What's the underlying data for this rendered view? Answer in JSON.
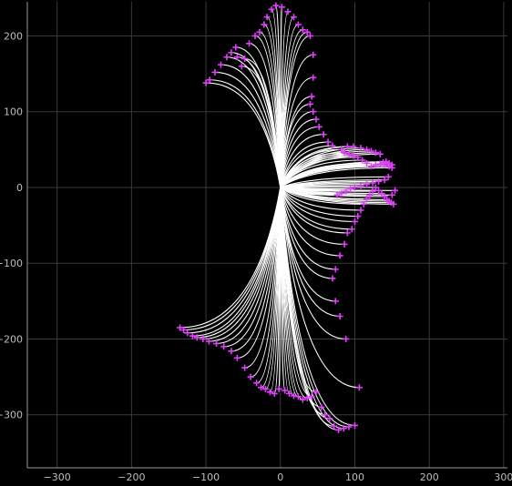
{
  "chart_data": {
    "type": "scatter",
    "title": "",
    "xlabel": "",
    "ylabel": "",
    "xlim": [
      -340,
      305
    ],
    "ylim": [
      -370,
      245
    ],
    "xticks": [
      -300,
      -200,
      -100,
      0,
      100,
      200,
      300
    ],
    "yticks": [
      -300,
      -200,
      -100,
      0,
      100,
      200
    ],
    "xtick_labels": [
      "−300",
      "−200",
      "−100",
      "0",
      "100",
      "200",
      "300"
    ],
    "ytick_labels": [
      "−300",
      "−200",
      "−100",
      "0",
      "100",
      "200"
    ],
    "grid": true,
    "origin": [
      0,
      0
    ],
    "colors": {
      "background": "#000000",
      "rays": "#ffffff",
      "hits": "#e040fb",
      "grid": "#3a3a3a",
      "tick_text": "#bdbdbd"
    },
    "series": [
      {
        "marker": "plus",
        "x": [
          -135,
          -130,
          -125,
          -118,
          -112,
          -104,
          -96,
          -86,
          -76,
          -66,
          -58,
          -48,
          -40,
          -32,
          -26,
          -20,
          -14,
          -8,
          -2,
          6,
          12,
          18,
          24,
          30,
          36,
          42,
          48,
          55,
          60,
          66,
          72,
          78,
          85,
          92,
          100,
          106,
          88,
          80,
          74,
          70,
          74,
          80,
          86,
          90,
          96,
          100,
          104,
          108,
          112,
          116,
          120,
          124,
          128,
          132,
          136,
          140,
          143,
          146,
          149,
          152,
          150,
          154,
          150,
          146,
          142,
          138,
          134,
          128,
          122,
          116,
          110,
          104,
          98,
          92,
          86,
          82,
          90,
          98,
          108,
          116,
          122,
          128,
          134,
          140,
          146,
          150,
          145,
          140,
          132,
          124,
          116,
          108,
          100,
          94,
          88,
          82,
          76,
          70,
          64,
          58,
          52,
          48,
          44,
          40,
          42,
          44,
          44,
          40,
          36,
          30,
          24,
          18,
          10,
          2,
          -6,
          -12,
          -18,
          -22,
          -28,
          -34,
          -42,
          -48,
          -52,
          -58,
          -60,
          -66,
          -72,
          -80,
          -88,
          -95,
          -100
        ],
        "y": [
          -185,
          -188,
          -192,
          -196,
          -198,
          -200,
          -203,
          -206,
          -210,
          -216,
          -225,
          -238,
          -250,
          -258,
          -264,
          -266,
          -270,
          -272,
          -266,
          -268,
          -272,
          -275,
          -276,
          -280,
          -278,
          -276,
          -270,
          -290,
          -300,
          -305,
          -315,
          -320,
          -318,
          -316,
          -314,
          -264,
          -200,
          -170,
          -150,
          -120,
          -108,
          -90,
          -75,
          -60,
          -55,
          -45,
          -38,
          -30,
          -22,
          -15,
          -10,
          -5,
          0,
          -4,
          -8,
          -12,
          -16,
          -18,
          -20,
          -22,
          -10,
          -4,
          30,
          32,
          34,
          33,
          31,
          30,
          28,
          32,
          36,
          40,
          42,
          44,
          46,
          50,
          54,
          54,
          52,
          50,
          48,
          46,
          44,
          30,
          28,
          26,
          14,
          10,
          8,
          6,
          4,
          2,
          0,
          -2,
          -5,
          -8,
          -10,
          55,
          60,
          70,
          80,
          90,
          100,
          110,
          120,
          145,
          175,
          200,
          205,
          208,
          215,
          225,
          232,
          238,
          240,
          235,
          225,
          215,
          205,
          200,
          190,
          170,
          160,
          172,
          185,
          178,
          172,
          162,
          152,
          142,
          138
        ]
      }
    ]
  }
}
